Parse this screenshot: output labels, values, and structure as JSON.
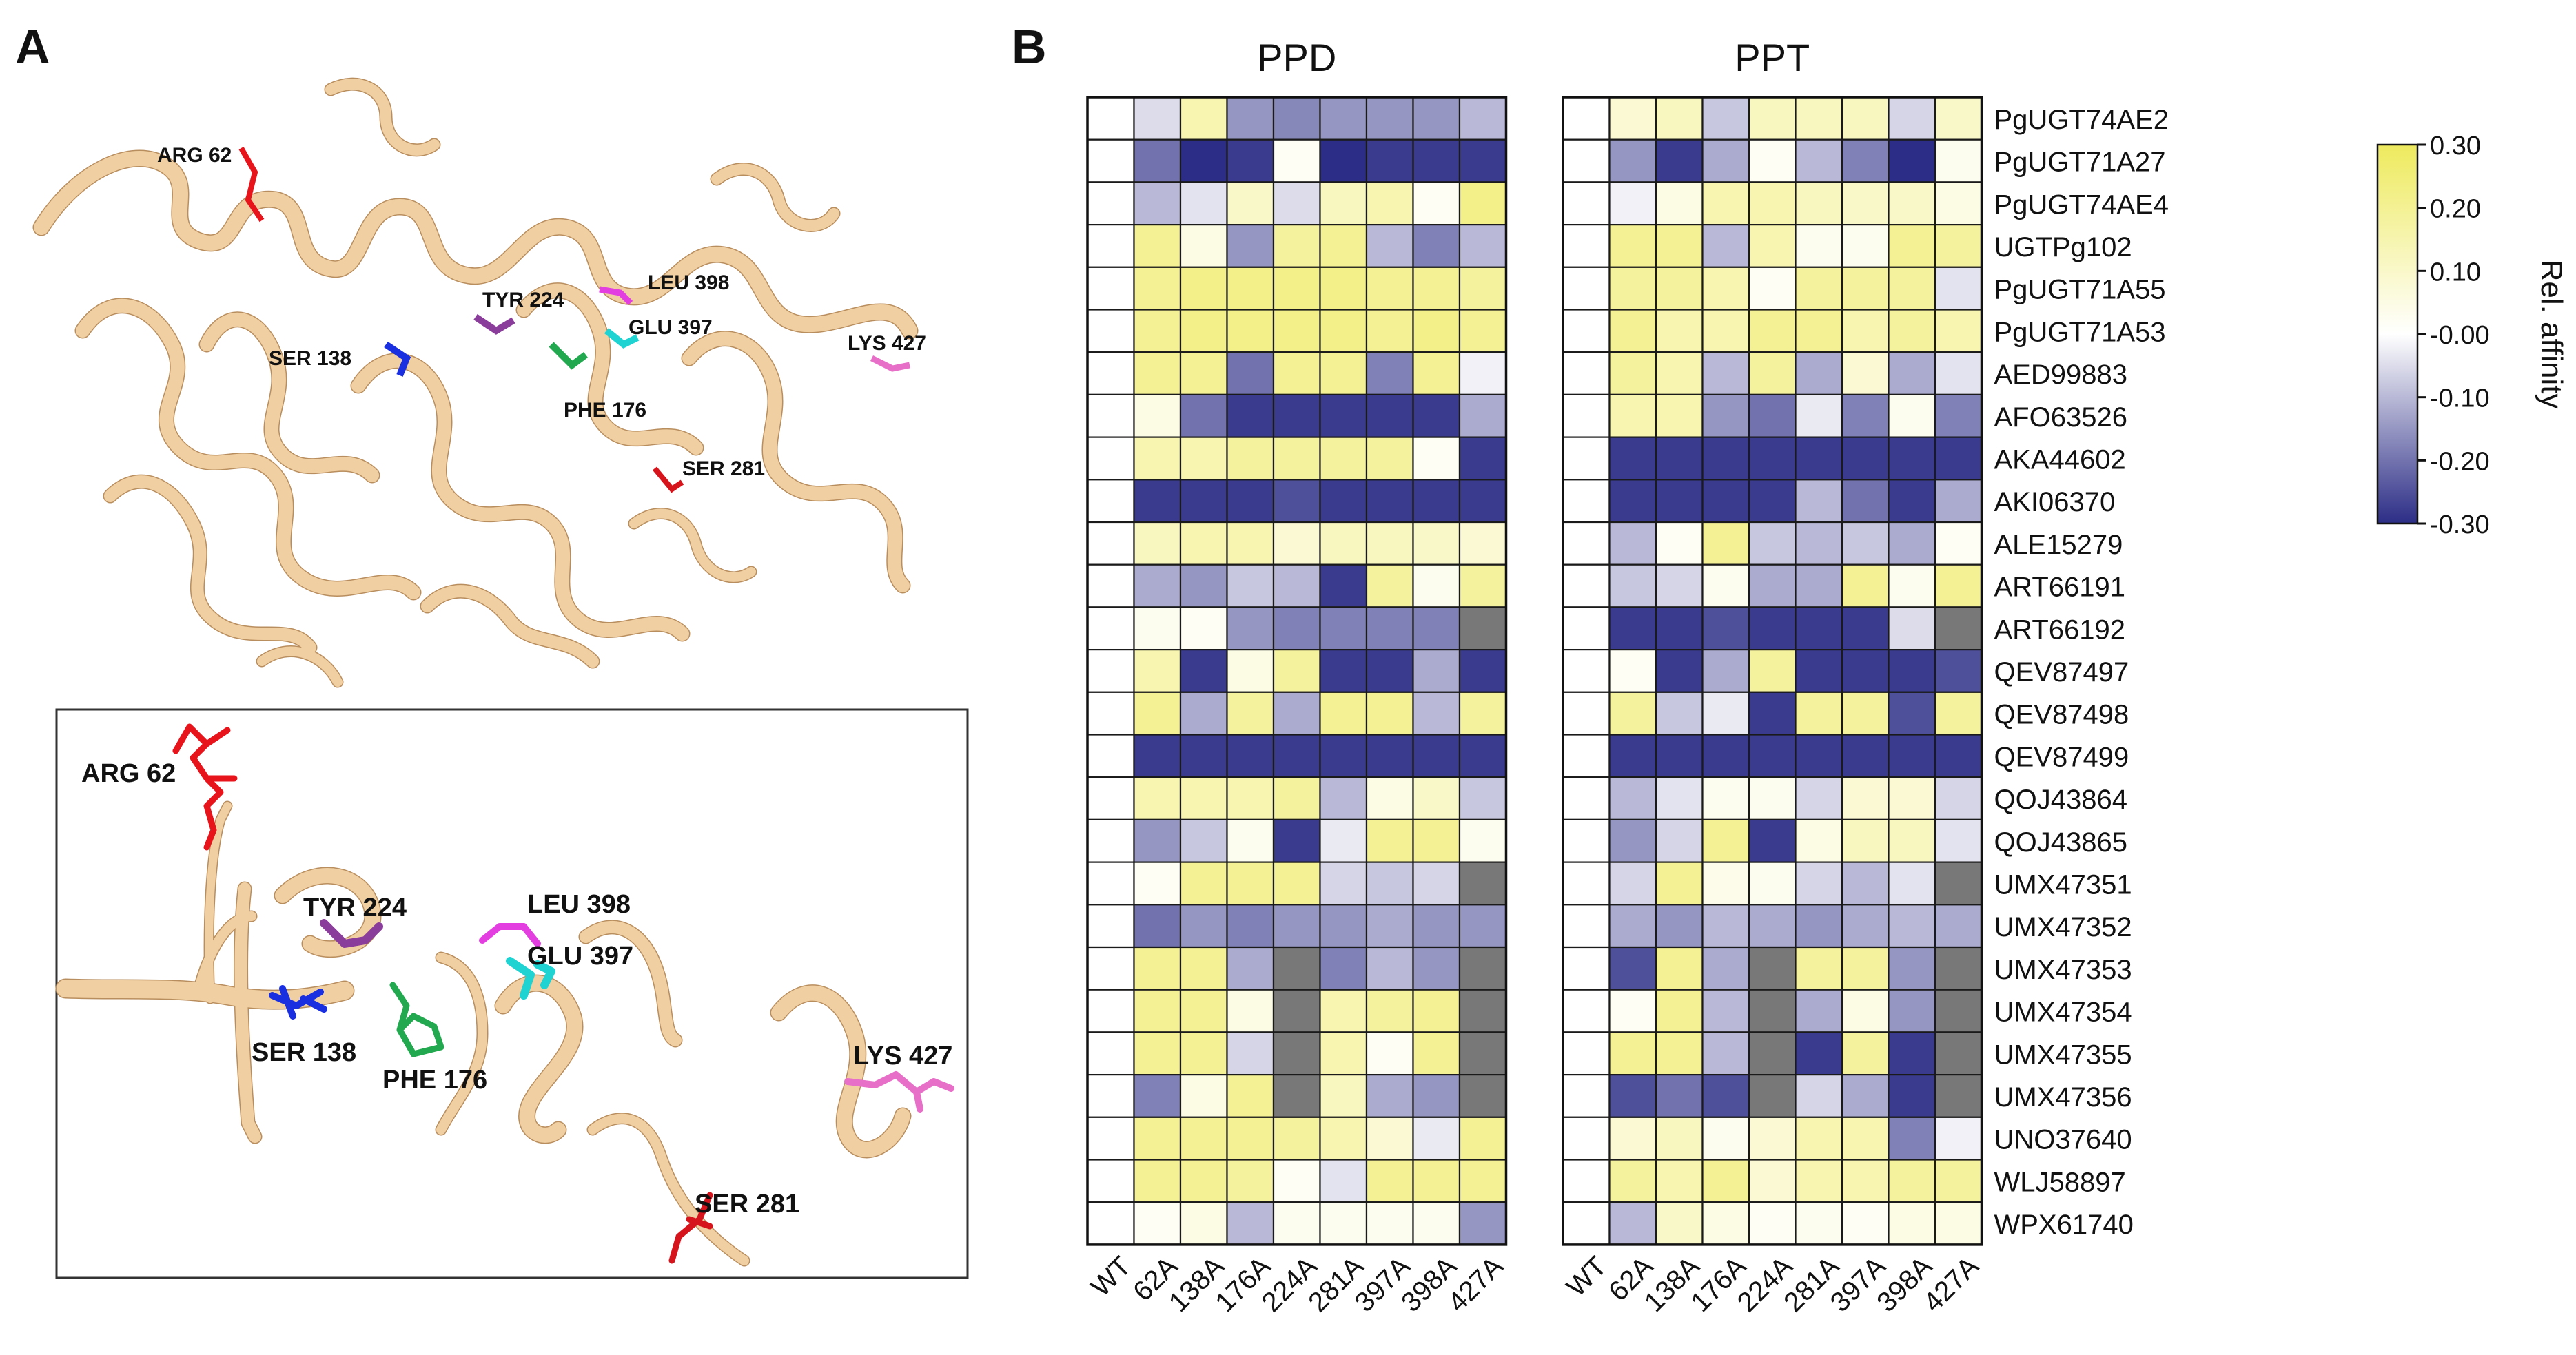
{
  "panels": {
    "a_letter": "A",
    "b_letter": "B"
  },
  "structure": {
    "residues": [
      {
        "id": "arg62",
        "label": "ARG 62",
        "color": "#e8141b"
      },
      {
        "id": "ser138",
        "label": "SER 138",
        "color": "#1a2fe0"
      },
      {
        "id": "phe176",
        "label": "PHE 176",
        "color": "#22a84f"
      },
      {
        "id": "tyr224",
        "label": "TYR 224",
        "color": "#8a3d9a"
      },
      {
        "id": "ser281",
        "label": "SER 281",
        "color": "#d6141c"
      },
      {
        "id": "glu397",
        "label": "GLU 397",
        "color": "#1fd3d3"
      },
      {
        "id": "leu398",
        "label": "LEU 398",
        "color": "#e23ee0"
      },
      {
        "id": "lys427",
        "label": "LYS 427",
        "color": "#e86fc8"
      }
    ],
    "ribbon_color": "#f0cfa2",
    "ribbon_edge": "#b98e5e"
  },
  "chart_data": {
    "type": "heatmap",
    "colorbar": {
      "label": "Rel. affinity",
      "ticks": [
        "0.30",
        "0.20",
        "0.10",
        "-0.00",
        "-0.10",
        "-0.20",
        "-0.30"
      ],
      "range": [
        -0.3,
        0.3
      ],
      "colors": {
        "low": "#2c2d86",
        "mid": "#ffffff",
        "high": "#eeea5e",
        "missing": "#787878"
      }
    },
    "columns": [
      "WT",
      "62A",
      "138A",
      "176A",
      "224A",
      "281A",
      "397A",
      "398A",
      "427A"
    ],
    "rows": [
      "PgUGT74AE2",
      "PgUGT71A27",
      "PgUGT74AE4",
      "UGTPg102",
      "PgUGT71A55",
      "PgUGT71A53",
      "AED99883",
      "AFO63526",
      "AKA44602",
      "AKI06370",
      "ALE15279",
      "ART66191",
      "ART66192",
      "QEV87497",
      "QEV87498",
      "QEV87499",
      "QOJ43864",
      "QOJ43865",
      "UMX47351",
      "UMX47352",
      "UMX47353",
      "UMX47354",
      "UMX47355",
      "UMX47356",
      "UNO37640",
      "WLJ58897",
      "WPX61740"
    ],
    "panels": [
      {
        "title": "PPD",
        "values": [
          [
            0,
            -0.05,
            0.15,
            -0.15,
            -0.17,
            -0.15,
            -0.15,
            -0.15,
            -0.1
          ],
          [
            0,
            -0.2,
            -0.3,
            -0.28,
            0.02,
            -0.3,
            -0.28,
            -0.28,
            -0.28
          ],
          [
            0,
            -0.1,
            -0.04,
            0.1,
            -0.05,
            0.12,
            0.15,
            0.02,
            0.22
          ],
          [
            0,
            0.2,
            0.05,
            -0.15,
            0.18,
            0.2,
            -0.1,
            -0.18,
            -0.1
          ],
          [
            0,
            0.2,
            0.22,
            0.22,
            0.22,
            0.22,
            0.2,
            0.2,
            0.18
          ],
          [
            0,
            0.2,
            0.22,
            0.22,
            0.22,
            0.22,
            0.2,
            0.22,
            0.2
          ],
          [
            0,
            0.2,
            0.2,
            -0.2,
            0.2,
            0.2,
            -0.18,
            0.2,
            -0.02
          ],
          [
            0,
            0.05,
            -0.2,
            -0.28,
            -0.28,
            -0.28,
            -0.28,
            -0.28,
            -0.12
          ],
          [
            0,
            0.15,
            0.15,
            0.18,
            0.18,
            0.18,
            0.18,
            0.02,
            -0.28
          ],
          [
            0,
            -0.28,
            -0.28,
            -0.28,
            -0.25,
            -0.28,
            -0.28,
            -0.28,
            -0.28
          ],
          [
            0,
            0.12,
            0.15,
            0.15,
            0.08,
            0.12,
            0.12,
            0.1,
            0.08
          ],
          [
            0,
            -0.12,
            -0.15,
            -0.08,
            -0.1,
            -0.28,
            0.18,
            0.03,
            0.18
          ],
          [
            0,
            0.03,
            0.02,
            -0.15,
            -0.18,
            -0.18,
            -0.18,
            -0.18,
            null
          ],
          [
            0,
            0.15,
            -0.28,
            0.05,
            0.18,
            -0.28,
            -0.28,
            -0.12,
            -0.28
          ],
          [
            0,
            0.2,
            -0.12,
            0.18,
            -0.12,
            0.2,
            0.2,
            -0.1,
            0.18
          ],
          [
            0,
            -0.28,
            -0.28,
            -0.28,
            -0.28,
            -0.28,
            -0.28,
            -0.28,
            -0.28
          ],
          [
            0,
            0.15,
            0.15,
            0.15,
            0.18,
            -0.1,
            0.05,
            0.1,
            -0.08
          ],
          [
            0,
            -0.15,
            -0.08,
            0.03,
            -0.28,
            -0.03,
            0.2,
            0.2,
            0.03
          ],
          [
            0,
            0.02,
            0.2,
            0.2,
            0.2,
            -0.06,
            -0.08,
            -0.06,
            null
          ],
          [
            0,
            -0.2,
            -0.15,
            -0.18,
            -0.15,
            -0.15,
            -0.12,
            -0.15,
            -0.15
          ],
          [
            0,
            0.2,
            0.2,
            -0.12,
            null,
            -0.18,
            -0.1,
            -0.15,
            null
          ],
          [
            0,
            0.2,
            0.2,
            0.05,
            null,
            0.15,
            0.18,
            0.2,
            null
          ],
          [
            0,
            0.2,
            0.2,
            -0.06,
            null,
            0.15,
            0.02,
            0.2,
            null
          ],
          [
            0,
            -0.18,
            0.05,
            0.2,
            null,
            0.12,
            -0.12,
            -0.15,
            null
          ],
          [
            0,
            0.2,
            0.2,
            0.2,
            0.18,
            0.15,
            0.08,
            -0.03,
            0.2
          ],
          [
            0,
            0.2,
            0.2,
            0.18,
            0.02,
            -0.04,
            0.2,
            0.2,
            0.2
          ],
          [
            0,
            0.02,
            0.05,
            -0.1,
            0.03,
            0.03,
            0.03,
            0.03,
            -0.15
          ]
        ]
      },
      {
        "title": "PPT",
        "values": [
          [
            0,
            0.08,
            0.12,
            -0.08,
            0.12,
            0.12,
            0.12,
            -0.06,
            0.1
          ],
          [
            0,
            -0.15,
            -0.28,
            -0.12,
            0.02,
            -0.1,
            -0.18,
            -0.3,
            0.03
          ],
          [
            0,
            -0.02,
            0.05,
            0.15,
            0.15,
            0.12,
            0.1,
            0.1,
            0.05
          ],
          [
            0,
            0.2,
            0.2,
            -0.1,
            0.15,
            0.03,
            0.03,
            0.2,
            0.18
          ],
          [
            0,
            0.18,
            0.18,
            0.15,
            0.02,
            0.18,
            0.18,
            0.18,
            -0.04
          ],
          [
            0,
            0.2,
            0.15,
            0.15,
            0.2,
            0.2,
            0.15,
            0.18,
            0.15
          ],
          [
            0,
            0.18,
            0.15,
            -0.1,
            0.18,
            -0.12,
            0.08,
            -0.12,
            -0.04
          ],
          [
            0,
            0.15,
            0.15,
            -0.15,
            -0.2,
            -0.03,
            -0.18,
            0.03,
            -0.18
          ],
          [
            0,
            -0.28,
            -0.28,
            -0.28,
            -0.28,
            -0.28,
            -0.28,
            -0.28,
            -0.28
          ],
          [
            0,
            -0.28,
            -0.28,
            -0.28,
            -0.28,
            -0.1,
            -0.2,
            -0.28,
            -0.12
          ],
          [
            0,
            -0.1,
            0.02,
            0.2,
            -0.08,
            -0.1,
            -0.08,
            -0.12,
            0.02
          ],
          [
            0,
            -0.08,
            -0.06,
            0.03,
            -0.12,
            -0.12,
            0.2,
            0.03,
            0.2
          ],
          [
            0,
            -0.28,
            -0.28,
            -0.25,
            -0.28,
            -0.28,
            -0.28,
            -0.05,
            null
          ],
          [
            0,
            0.02,
            -0.28,
            -0.12,
            0.18,
            -0.28,
            -0.28,
            -0.28,
            -0.25
          ],
          [
            0,
            0.18,
            -0.08,
            -0.03,
            -0.28,
            0.18,
            0.18,
            -0.25,
            0.18
          ],
          [
            0,
            -0.28,
            -0.28,
            -0.28,
            -0.28,
            -0.28,
            -0.28,
            -0.28,
            -0.28
          ],
          [
            0,
            -0.1,
            -0.04,
            0.03,
            0.03,
            -0.06,
            0.08,
            0.08,
            -0.06
          ],
          [
            0,
            -0.15,
            -0.06,
            0.2,
            -0.28,
            0.05,
            0.12,
            0.12,
            -0.04
          ],
          [
            0,
            -0.06,
            0.2,
            0.04,
            0.03,
            -0.06,
            -0.1,
            -0.04,
            null
          ],
          [
            0,
            -0.12,
            -0.15,
            -0.1,
            -0.12,
            -0.15,
            -0.12,
            -0.1,
            -0.12
          ],
          [
            0,
            -0.25,
            0.2,
            -0.12,
            null,
            0.18,
            0.18,
            -0.15,
            null
          ],
          [
            0,
            0.02,
            0.2,
            -0.1,
            null,
            -0.12,
            0.05,
            -0.15,
            null
          ],
          [
            0,
            0.2,
            0.2,
            -0.1,
            null,
            -0.28,
            0.18,
            -0.28,
            null
          ],
          [
            0,
            -0.25,
            -0.2,
            -0.25,
            null,
            -0.06,
            -0.12,
            -0.28,
            null
          ],
          [
            0,
            0.08,
            0.12,
            0.03,
            0.08,
            0.15,
            0.15,
            -0.18,
            -0.02
          ],
          [
            0,
            0.18,
            0.15,
            0.2,
            0.08,
            0.15,
            0.15,
            0.18,
            0.18
          ],
          [
            0,
            -0.1,
            0.1,
            0.05,
            0.02,
            0.03,
            0.02,
            0.05,
            0.05
          ]
        ]
      }
    ]
  }
}
